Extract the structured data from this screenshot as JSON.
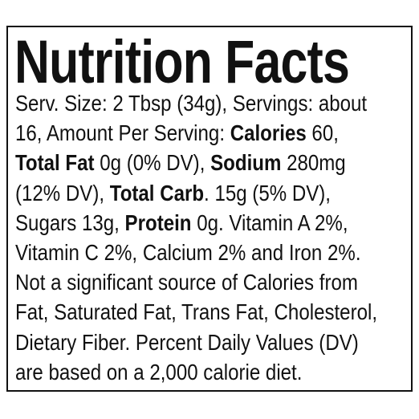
{
  "title": "Nutrition Facts",
  "lines": [
    [
      {
        "text": "Serv. Size: 2 Tbsp (34g), Servings: about",
        "bold": false
      }
    ],
    [
      {
        "text": "16, Amount Per Serving: ",
        "bold": false
      },
      {
        "text": "Calories",
        "bold": true
      },
      {
        "text": " 60,",
        "bold": false
      }
    ],
    [
      {
        "text": "Total Fat",
        "bold": true
      },
      {
        "text": " 0g (0% DV), ",
        "bold": false
      },
      {
        "text": "Sodium",
        "bold": true
      },
      {
        "text": " 280mg",
        "bold": false
      }
    ],
    [
      {
        "text": "(12% DV), ",
        "bold": false
      },
      {
        "text": "Total Carb",
        "bold": true
      },
      {
        "text": ". 15g (5% DV),",
        "bold": false
      }
    ],
    [
      {
        "text": "Sugars 13g, ",
        "bold": false
      },
      {
        "text": "Protein",
        "bold": true
      },
      {
        "text": " 0g. Vitamin A 2%,",
        "bold": false
      }
    ],
    [
      {
        "text": "Vitamin C 2%, Calcium 2% and Iron 2%.",
        "bold": false
      }
    ],
    [
      {
        "text": "Not a significant source of Calories from",
        "bold": false
      }
    ],
    [
      {
        "text": "Fat, Saturated Fat, Trans Fat, Cholesterol,",
        "bold": false
      }
    ],
    [
      {
        "text": "Dietary Fiber. Percent Daily Values (DV)",
        "bold": false
      }
    ],
    [
      {
        "text": "are based on a 2,000 calorie diet.",
        "bold": false
      }
    ]
  ]
}
